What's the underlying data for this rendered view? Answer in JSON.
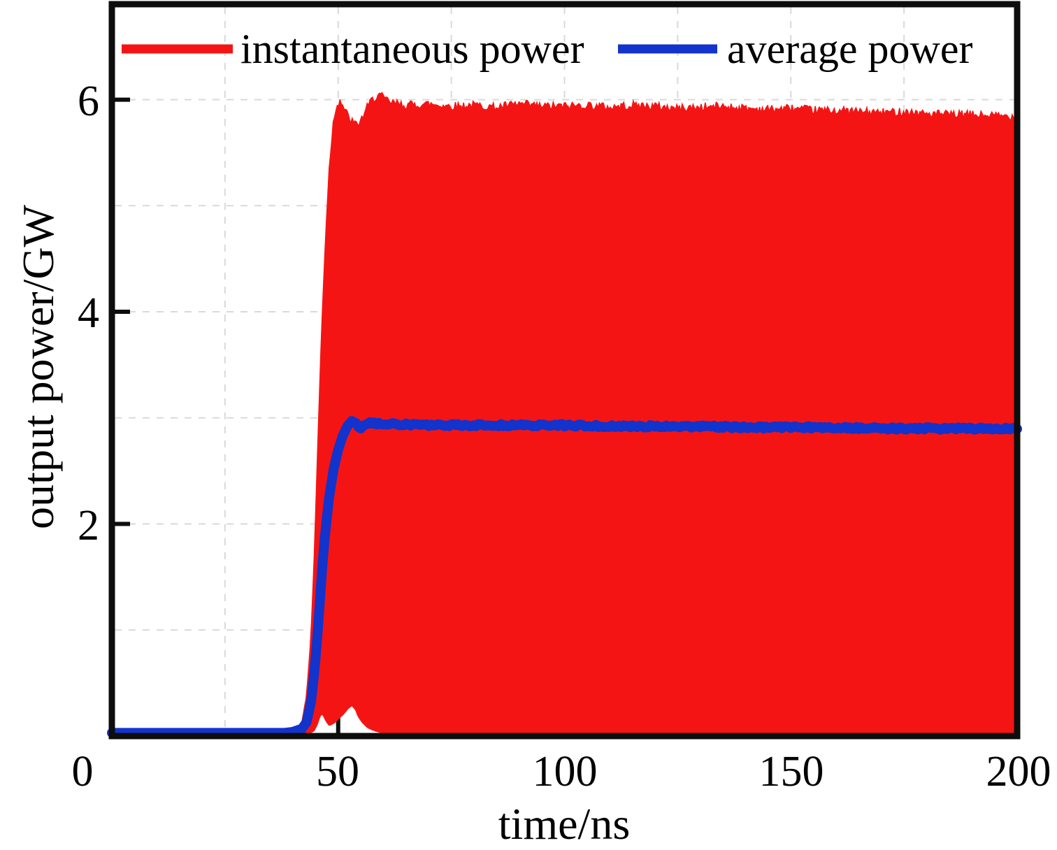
{
  "figure": {
    "background": "#ffffff"
  },
  "axes": {
    "xlabel": "time/ns",
    "ylabel": "output power/GW"
  },
  "chart_data": {
    "type": "area",
    "title": "",
    "xlabel": "time/ns",
    "ylabel": "output power/GW",
    "xlim": [
      0,
      200
    ],
    "ylim": [
      0,
      6.9
    ],
    "x_ticks": [
      0,
      50,
      100,
      150,
      200
    ],
    "y_ticks": [
      2,
      4,
      6
    ],
    "x_tick_labels": [
      "0",
      "50",
      "100",
      "150",
      "200"
    ],
    "y_tick_labels": [
      "2",
      "4",
      "6"
    ],
    "x_grid_minor": [
      25,
      50,
      75,
      100,
      125,
      150,
      175
    ],
    "y_grid_minor": [
      1,
      2,
      3,
      4,
      5,
      6
    ],
    "grid": "dashed-minor",
    "legend_position": "top",
    "legend": [
      {
        "label": "instantaneous power",
        "color": "#f51414"
      },
      {
        "label": "average power",
        "color": "#1233cc"
      }
    ],
    "colors": {
      "instantaneous": "#f51414",
      "average": "#1233cc",
      "grid": "#d9d9d9",
      "frame": "#0d0d0d"
    },
    "series": [
      {
        "name": "instantaneous power",
        "render": "band",
        "color": "#f51414",
        "upper_envelope": [
          [
            0,
            0.045
          ],
          [
            38,
            0.045
          ],
          [
            41,
            0.07
          ],
          [
            42,
            0.14
          ],
          [
            43,
            0.38
          ],
          [
            44,
            0.95
          ],
          [
            44.8,
            1.8
          ],
          [
            45.6,
            2.9
          ],
          [
            46.4,
            3.9
          ],
          [
            47.2,
            4.7
          ],
          [
            48,
            5.35
          ],
          [
            48.8,
            5.75
          ],
          [
            49.6,
            5.95
          ],
          [
            50.5,
            6.0
          ],
          [
            51.5,
            5.9
          ],
          [
            52.5,
            5.82
          ],
          [
            54,
            5.76
          ],
          [
            55,
            5.8
          ],
          [
            56,
            5.9
          ],
          [
            57.5,
            6.0
          ],
          [
            59,
            6.05
          ],
          [
            60.5,
            6.0
          ],
          [
            62,
            5.97
          ],
          [
            65,
            5.95
          ],
          [
            70,
            5.96
          ],
          [
            75,
            5.94
          ],
          [
            80,
            5.95
          ],
          [
            85,
            5.93
          ],
          [
            90,
            5.96
          ],
          [
            95,
            5.94
          ],
          [
            100,
            5.94
          ],
          [
            105,
            5.95
          ],
          [
            110,
            5.93
          ],
          [
            115,
            5.95
          ],
          [
            120,
            5.94
          ],
          [
            125,
            5.92
          ],
          [
            130,
            5.93
          ],
          [
            135,
            5.94
          ],
          [
            140,
            5.92
          ],
          [
            145,
            5.91
          ],
          [
            150,
            5.92
          ],
          [
            155,
            5.9
          ],
          [
            160,
            5.9
          ],
          [
            165,
            5.89
          ],
          [
            170,
            5.88
          ],
          [
            175,
            5.89
          ],
          [
            180,
            5.87
          ],
          [
            185,
            5.86
          ],
          [
            190,
            5.86
          ],
          [
            195,
            5.85
          ],
          [
            200,
            5.84
          ]
        ],
        "lower_envelope": [
          [
            0,
            0.02
          ],
          [
            40,
            0.02
          ],
          [
            43,
            0.025
          ],
          [
            44.5,
            0.04
          ],
          [
            45.3,
            0.1
          ],
          [
            46,
            0.19
          ],
          [
            46.5,
            0.21
          ],
          [
            47.2,
            0.15
          ],
          [
            48,
            0.1
          ],
          [
            49,
            0.12
          ],
          [
            50,
            0.16
          ],
          [
            51,
            0.2
          ],
          [
            52,
            0.25
          ],
          [
            53,
            0.29
          ],
          [
            53.8,
            0.25
          ],
          [
            54.6,
            0.17
          ],
          [
            55.5,
            0.12
          ],
          [
            56.5,
            0.08
          ],
          [
            58,
            0.05
          ],
          [
            60,
            0.03
          ],
          [
            62,
            0.022
          ],
          [
            200,
            0.018
          ]
        ],
        "upper_noise": 0.04,
        "upper_noise_from": 48,
        "lower_noise": 0.008,
        "lower_noise_from": 62
      },
      {
        "name": "average power",
        "render": "line",
        "color": "#1233cc",
        "line_width": 14,
        "points": [
          [
            0,
            0.03
          ],
          [
            38,
            0.03
          ],
          [
            40,
            0.04
          ],
          [
            42,
            0.07
          ],
          [
            43,
            0.13
          ],
          [
            44,
            0.32
          ],
          [
            44.8,
            0.62
          ],
          [
            45.6,
            1.05
          ],
          [
            46.4,
            1.55
          ],
          [
            47.2,
            1.95
          ],
          [
            48,
            2.25
          ],
          [
            49,
            2.52
          ],
          [
            50,
            2.7
          ],
          [
            51,
            2.83
          ],
          [
            52,
            2.92
          ],
          [
            53,
            2.97
          ],
          [
            54,
            2.95
          ],
          [
            54.8,
            2.89
          ],
          [
            55.6,
            2.93
          ],
          [
            57,
            2.95
          ],
          [
            60,
            2.94
          ],
          [
            65,
            2.94
          ],
          [
            70,
            2.93
          ],
          [
            80,
            2.93
          ],
          [
            90,
            2.93
          ],
          [
            100,
            2.93
          ],
          [
            110,
            2.92
          ],
          [
            120,
            2.92
          ],
          [
            130,
            2.92
          ],
          [
            140,
            2.91
          ],
          [
            150,
            2.91
          ],
          [
            160,
            2.91
          ],
          [
            170,
            2.9
          ],
          [
            180,
            2.9
          ],
          [
            190,
            2.9
          ],
          [
            200,
            2.9
          ]
        ],
        "noise": 0.012,
        "noise_from": 57
      }
    ]
  }
}
